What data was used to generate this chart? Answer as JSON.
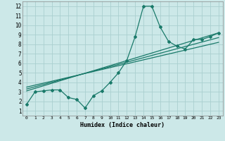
{
  "xlabel": "Humidex (Indice chaleur)",
  "xlim": [
    -0.5,
    23.5
  ],
  "ylim": [
    0.5,
    12.5
  ],
  "xticks": [
    0,
    1,
    2,
    3,
    4,
    5,
    6,
    7,
    8,
    9,
    10,
    11,
    12,
    13,
    14,
    15,
    16,
    17,
    18,
    19,
    20,
    21,
    22,
    23
  ],
  "yticks": [
    1,
    2,
    3,
    4,
    5,
    6,
    7,
    8,
    9,
    10,
    11,
    12
  ],
  "bg_color": "#cce8e8",
  "grid_color": "#aacfcf",
  "line_color": "#1a7a6a",
  "series": [
    {
      "x": [
        0,
        1,
        2,
        3,
        4,
        5,
        6,
        7,
        8,
        9,
        10,
        11,
        12,
        13,
        14,
        15,
        16,
        17,
        18,
        19,
        20,
        21,
        22,
        23
      ],
      "y": [
        1.7,
        3.0,
        3.1,
        3.2,
        3.2,
        2.4,
        2.2,
        1.3,
        2.6,
        3.1,
        4.0,
        5.0,
        6.3,
        8.8,
        12.0,
        12.0,
        9.8,
        8.3,
        7.8,
        7.5,
        8.5,
        8.5,
        8.8,
        9.2
      ]
    },
    {
      "x": [
        0,
        23
      ],
      "y": [
        3.1,
        9.2
      ]
    },
    {
      "x": [
        0,
        23
      ],
      "y": [
        3.3,
        8.7
      ]
    },
    {
      "x": [
        0,
        23
      ],
      "y": [
        3.5,
        8.2
      ]
    }
  ]
}
